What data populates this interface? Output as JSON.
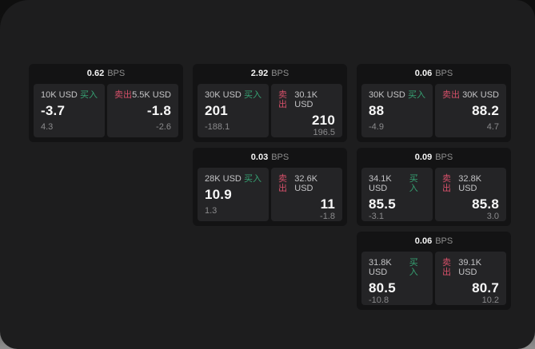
{
  "labels": {
    "bps": "BPS",
    "buy": "买入",
    "sell": "卖出"
  },
  "colors": {
    "buy_green": "#36a273",
    "sell_red": "#d55069",
    "surface": "#1d1d1e",
    "card_bg": "#131314",
    "panel_bg": "#242426"
  },
  "cards": [
    {
      "bps_value": "0.62",
      "buy": {
        "notional": "10K USD",
        "value": "-3.7",
        "delta": "4.3"
      },
      "sell": {
        "notional": "5.5K USD",
        "value": "-1.8",
        "delta": "-2.6"
      }
    },
    {
      "bps_value": "2.92",
      "buy": {
        "notional": "30K USD",
        "value": "201",
        "delta": "-188.1"
      },
      "sell": {
        "notional": "30.1K USD",
        "value": "210",
        "delta": "196.5"
      }
    },
    {
      "bps_value": "0.06",
      "buy": {
        "notional": "30K USD",
        "value": "88",
        "delta": "-4.9"
      },
      "sell": {
        "notional": "30K USD",
        "value": "88.2",
        "delta": "4.7"
      }
    },
    {
      "bps_value": "0.03",
      "buy": {
        "notional": "28K USD",
        "value": "10.9",
        "delta": "1.3"
      },
      "sell": {
        "notional": "32.6K USD",
        "value": "11",
        "delta": "-1.8"
      }
    },
    {
      "bps_value": "0.09",
      "buy": {
        "notional": "34.1K USD",
        "value": "85.5",
        "delta": "-3.1"
      },
      "sell": {
        "notional": "32.8K USD",
        "value": "85.8",
        "delta": "3.0"
      }
    },
    {
      "bps_value": "0.06",
      "buy": {
        "notional": "31.8K USD",
        "value": "80.5",
        "delta": "-10.8"
      },
      "sell": {
        "notional": "39.1K USD",
        "value": "80.7",
        "delta": "10.2"
      }
    }
  ]
}
